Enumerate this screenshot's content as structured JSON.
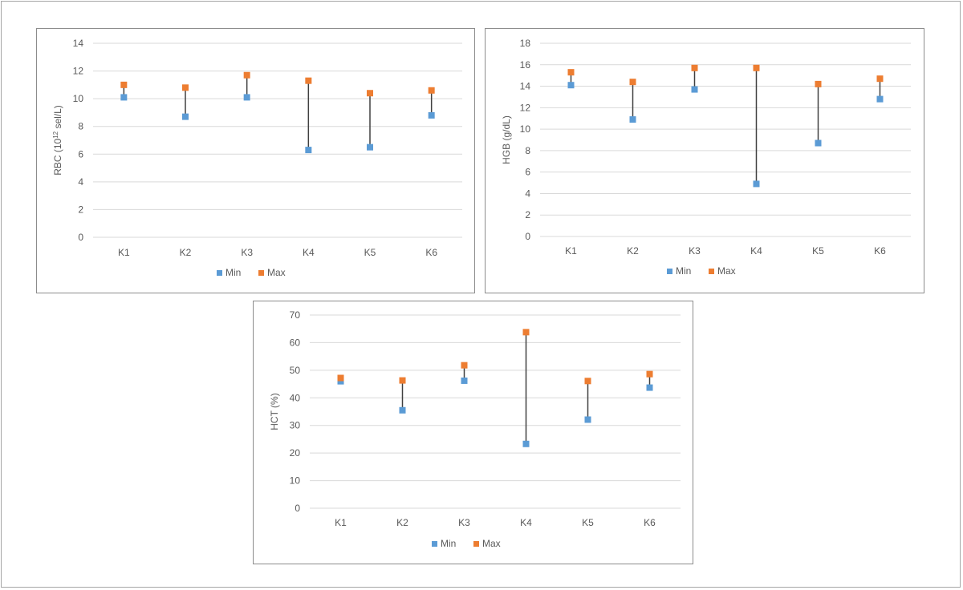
{
  "colors": {
    "min": "#5b9bd5",
    "max": "#ed7d31",
    "range_line": "#404040",
    "grid": "#d9d9d9",
    "axis_text": "#595959"
  },
  "chart_data": [
    {
      "id": "rbc",
      "type": "scatter",
      "title": "",
      "xlabel": "",
      "ylabel_main": "RBC (10",
      "ylabel_sup": "12",
      "ylabel_rest": " sel/L)",
      "categories": [
        "K1",
        "K2",
        "K3",
        "K4",
        "K5",
        "K6"
      ],
      "ylim": [
        0,
        14
      ],
      "yticks": [
        0,
        2,
        4,
        6,
        8,
        10,
        12,
        14
      ],
      "grid": true,
      "legend": "bottom",
      "series": [
        {
          "name": "Min",
          "values": [
            10.1,
            8.7,
            10.1,
            6.3,
            6.5,
            8.8
          ]
        },
        {
          "name": "Max",
          "values": [
            11.0,
            10.8,
            11.7,
            11.3,
            10.4,
            10.6
          ]
        }
      ]
    },
    {
      "id": "hgb",
      "type": "scatter",
      "title": "",
      "xlabel": "",
      "ylabel_main": "HGB (g/dL)",
      "ylabel_sup": "",
      "ylabel_rest": "",
      "categories": [
        "K1",
        "K2",
        "K3",
        "K4",
        "K5",
        "K6"
      ],
      "ylim": [
        0,
        18
      ],
      "yticks": [
        0,
        2,
        4,
        6,
        8,
        10,
        12,
        14,
        16,
        18
      ],
      "grid": true,
      "legend": "bottom",
      "series": [
        {
          "name": "Min",
          "values": [
            14.1,
            10.9,
            13.7,
            4.9,
            8.7,
            12.8
          ]
        },
        {
          "name": "Max",
          "values": [
            15.3,
            14.4,
            15.7,
            15.7,
            14.2,
            14.7
          ]
        }
      ]
    },
    {
      "id": "hct",
      "type": "scatter",
      "title": "",
      "xlabel": "",
      "ylabel_main": "HCT (%)",
      "ylabel_sup": "",
      "ylabel_rest": "",
      "categories": [
        "K1",
        "K2",
        "K3",
        "K4",
        "K5",
        "K6"
      ],
      "ylim": [
        0,
        70
      ],
      "yticks": [
        0,
        10,
        20,
        30,
        40,
        50,
        60,
        70
      ],
      "grid": true,
      "legend": "bottom",
      "series": [
        {
          "name": "Min",
          "values": [
            46.0,
            35.5,
            46.2,
            23.3,
            32.1,
            43.7
          ]
        },
        {
          "name": "Max",
          "values": [
            47.2,
            46.3,
            51.8,
            63.8,
            46.1,
            48.6
          ]
        }
      ]
    }
  ]
}
